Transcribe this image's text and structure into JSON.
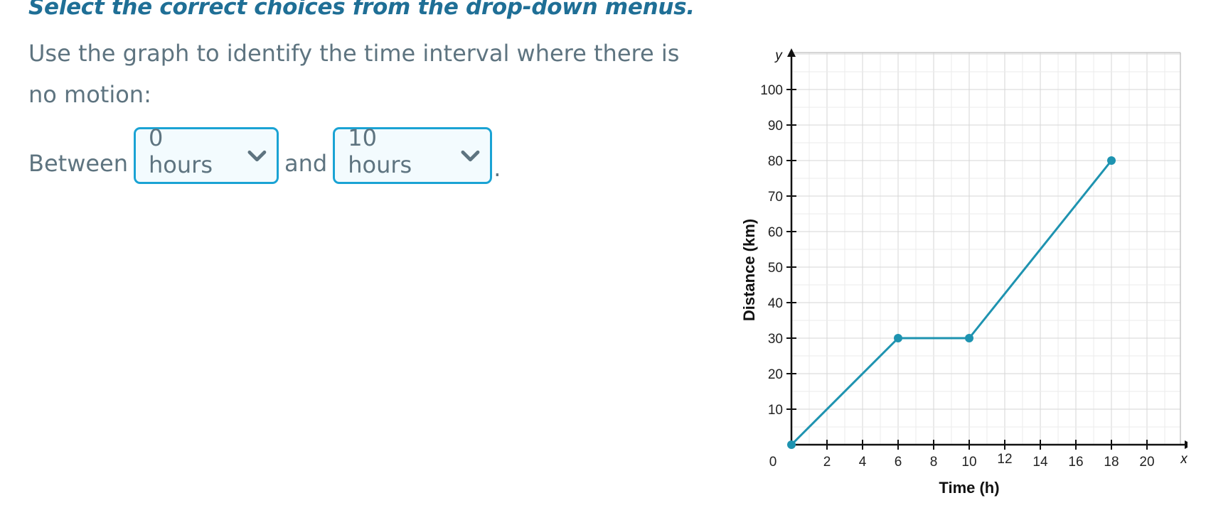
{
  "question": {
    "instruction": "Select the correct choices from the drop-down menus.",
    "prompt": "Use the graph to identify the time interval where there is no motion:",
    "sentence": {
      "prefix": "Between",
      "connector": "and",
      "suffix": "."
    },
    "dropdowns": [
      {
        "selected": "0 hours",
        "icon": "chevron-down-icon"
      },
      {
        "selected": "10 hours",
        "icon": "chevron-down-icon"
      }
    ]
  },
  "colors": {
    "accent": "#1aa3d4",
    "heading": "#1f6f96",
    "text": "#5e7480",
    "line": "#1e93b0"
  },
  "chart_data": {
    "type": "line",
    "xlabel": "Time (h)",
    "ylabel": "Distance (km)",
    "x_axis_var": "x",
    "y_axis_var": "y",
    "x_ticks": [
      0,
      2,
      4,
      6,
      8,
      10,
      12,
      14,
      16,
      18,
      20
    ],
    "y_ticks": [
      10,
      20,
      30,
      40,
      50,
      60,
      70,
      80,
      90,
      100
    ],
    "xlim": [
      0,
      21.5
    ],
    "ylim": [
      0,
      108
    ],
    "grid": true,
    "series": [
      {
        "x": [
          0,
          6,
          10,
          18
        ],
        "y": [
          0,
          30,
          30,
          80
        ]
      }
    ]
  }
}
